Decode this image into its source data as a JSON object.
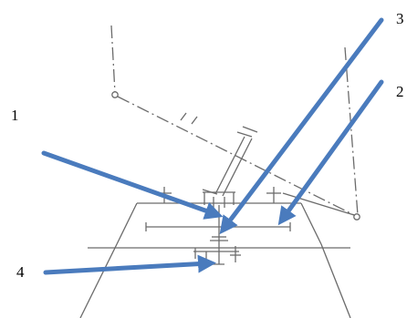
{
  "labels": {
    "l1": "1",
    "l2": "2",
    "l3": "3",
    "l4": "4"
  },
  "colors": {
    "arrow": "#4a7bbd",
    "line": "#6b6b6b"
  }
}
